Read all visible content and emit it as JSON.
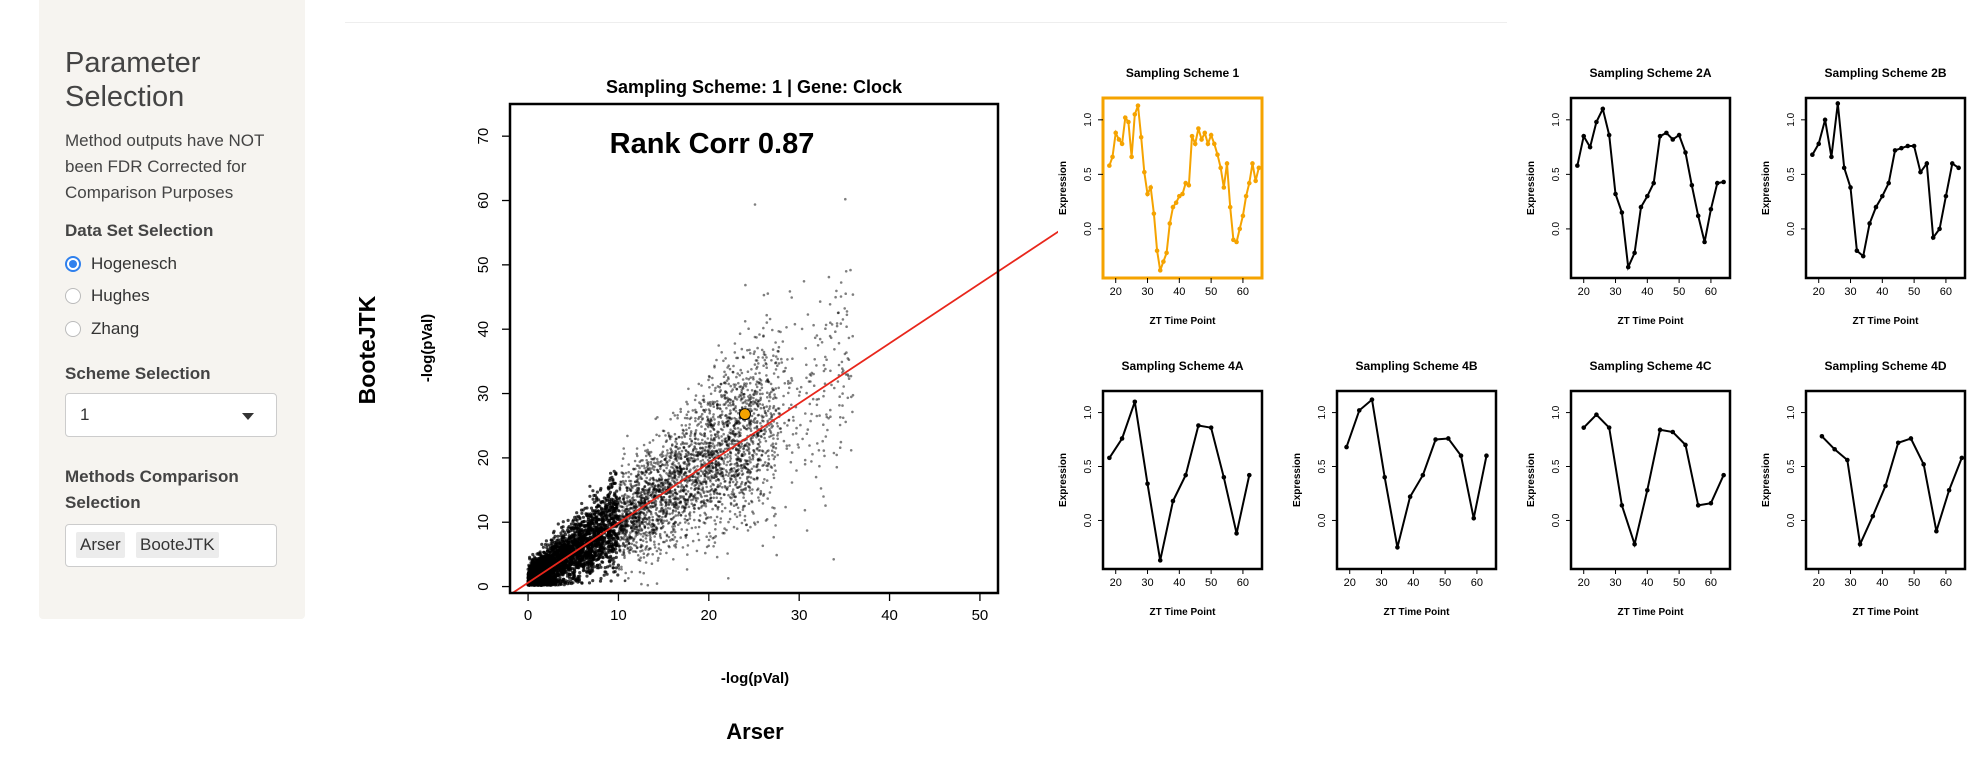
{
  "sidebar": {
    "title": "Parameter Selection",
    "note": "Method outputs have NOT been FDR Corrected for Comparison Purposes",
    "data_set_label": "Data Set Selection",
    "data_sets": [
      "Hogenesch",
      "Hughes",
      "Zhang"
    ],
    "data_set_selected": "Hogenesch",
    "scheme_label": "Scheme Selection",
    "scheme_value": "1",
    "methods_label": "Methods Comparison Selection",
    "methods": [
      "Arser",
      "BooteJTK"
    ]
  },
  "colors": {
    "highlight": "#f5a300",
    "fit_line": "#e8261b",
    "radio_selected": "#2f80ed",
    "points": "#000000"
  },
  "chart_data": [
    {
      "type": "scatter",
      "title": "Sampling Scheme: 1 | Gene: Clock",
      "annotation": "Rank Corr 0.87",
      "xlabel": "-log(pVal)",
      "ylabel": "-log(pVal)",
      "outer_xlabel": "Arser",
      "outer_ylabel": "BooteJTK",
      "xlim": [
        -2,
        52
      ],
      "ylim": [
        -1,
        75
      ],
      "xticks": [
        0,
        10,
        20,
        30,
        40,
        50
      ],
      "yticks": [
        0,
        10,
        20,
        30,
        40,
        50,
        60,
        70
      ],
      "fit_line": {
        "slope": 0.93,
        "intercept": 0.6
      },
      "highlight_point": {
        "x": 24,
        "y": 26.8
      },
      "point_cloud": {
        "n_points": 6000,
        "x_range": [
          0,
          36
        ],
        "y_range": [
          0,
          45
        ]
      }
    },
    {
      "type": "line",
      "title": "Sampling Scheme 1",
      "highlighted": true,
      "xlabel": "ZT Time Point",
      "ylabel": "Expression",
      "xlim": [
        16,
        66
      ],
      "ylim": [
        -0.45,
        1.2
      ],
      "xticks": [
        20,
        30,
        40,
        50,
        60
      ],
      "yticks": [
        0,
        0.5,
        1
      ],
      "x": [
        18,
        19,
        20,
        21,
        22,
        23,
        24,
        25,
        26,
        27,
        28,
        29,
        30,
        31,
        32,
        33,
        34,
        35,
        36,
        37,
        38,
        39,
        40,
        41,
        42,
        43,
        44,
        45,
        46,
        47,
        48,
        49,
        50,
        51,
        52,
        53,
        54,
        55,
        56,
        57,
        58,
        59,
        60,
        61,
        62,
        63,
        64,
        65
      ],
      "y": [
        0.58,
        0.66,
        0.88,
        0.82,
        0.78,
        1.02,
        0.98,
        0.66,
        1.05,
        1.13,
        0.84,
        0.52,
        0.32,
        0.38,
        0.14,
        -0.2,
        -0.38,
        -0.3,
        -0.22,
        0.05,
        0.2,
        0.24,
        0.3,
        0.32,
        0.42,
        0.4,
        0.85,
        0.78,
        0.92,
        0.82,
        0.88,
        0.78,
        0.86,
        0.78,
        0.68,
        0.56,
        0.38,
        0.6,
        0.2,
        -0.1,
        -0.12,
        0.0,
        0.12,
        0.3,
        0.42,
        0.6,
        0.44,
        0.56
      ]
    },
    {
      "type": "line",
      "title": "Sampling Scheme 2A",
      "xlabel": "ZT Time Point",
      "ylabel": "Expression",
      "xlim": [
        16,
        66
      ],
      "ylim": [
        -0.45,
        1.2
      ],
      "xticks": [
        20,
        30,
        40,
        50,
        60
      ],
      "yticks": [
        0,
        0.5,
        1
      ],
      "x": [
        18,
        20,
        22,
        24,
        26,
        28,
        30,
        32,
        34,
        36,
        38,
        40,
        42,
        44,
        46,
        48,
        50,
        52,
        54,
        56,
        58,
        60,
        62,
        64
      ],
      "y": [
        0.58,
        0.85,
        0.75,
        0.98,
        1.1,
        0.86,
        0.32,
        0.15,
        -0.35,
        -0.22,
        0.2,
        0.3,
        0.42,
        0.85,
        0.88,
        0.82,
        0.86,
        0.7,
        0.4,
        0.12,
        -0.12,
        0.18,
        0.42,
        0.43
      ]
    },
    {
      "type": "line",
      "title": "Sampling Scheme 2B",
      "xlabel": "ZT Time Point",
      "ylabel": "Expression",
      "xlim": [
        16,
        66
      ],
      "ylim": [
        -0.45,
        1.2
      ],
      "xticks": [
        20,
        30,
        40,
        50,
        60
      ],
      "yticks": [
        0,
        0.5,
        1
      ],
      "x": [
        18,
        20,
        22,
        24,
        26,
        28,
        30,
        32,
        34,
        36,
        38,
        40,
        42,
        44,
        46,
        48,
        50,
        52,
        54,
        56,
        58,
        60,
        62,
        64
      ],
      "y": [
        0.68,
        0.78,
        1.0,
        0.66,
        1.15,
        0.56,
        0.38,
        -0.2,
        -0.25,
        0.05,
        0.2,
        0.3,
        0.42,
        0.72,
        0.74,
        0.76,
        0.76,
        0.52,
        0.6,
        -0.08,
        0.0,
        0.3,
        0.6,
        0.56
      ]
    },
    {
      "type": "line",
      "title": "Sampling Scheme 4A",
      "xlabel": "ZT Time Point",
      "ylabel": "Expression",
      "xlim": [
        16,
        66
      ],
      "ylim": [
        -0.45,
        1.2
      ],
      "xticks": [
        20,
        30,
        40,
        50,
        60
      ],
      "yticks": [
        0,
        0.5,
        1
      ],
      "x": [
        18,
        22,
        26,
        30,
        34,
        38,
        42,
        46,
        50,
        54,
        58,
        62
      ],
      "y": [
        0.58,
        0.76,
        1.1,
        0.34,
        -0.37,
        0.18,
        0.42,
        0.88,
        0.86,
        0.4,
        -0.12,
        0.42
      ]
    },
    {
      "type": "line",
      "title": "Sampling Scheme 4B",
      "xlabel": "ZT Time Point",
      "ylabel": "Expression",
      "xlim": [
        16,
        66
      ],
      "ylim": [
        -0.45,
        1.2
      ],
      "xticks": [
        20,
        30,
        40,
        50,
        60
      ],
      "yticks": [
        0,
        0.5,
        1
      ],
      "x": [
        19,
        23,
        27,
        31,
        35,
        39,
        43,
        47,
        51,
        55,
        59,
        63
      ],
      "y": [
        0.68,
        1.02,
        1.12,
        0.4,
        -0.25,
        0.22,
        0.42,
        0.75,
        0.76,
        0.6,
        0.02,
        0.6
      ]
    },
    {
      "type": "line",
      "title": "Sampling Scheme 4C",
      "xlabel": "ZT Time Point",
      "ylabel": "Expression",
      "xlim": [
        16,
        66
      ],
      "ylim": [
        -0.45,
        1.2
      ],
      "xticks": [
        20,
        30,
        40,
        50,
        60
      ],
      "yticks": [
        0,
        0.5,
        1
      ],
      "x": [
        20,
        24,
        28,
        32,
        36,
        40,
        44,
        48,
        52,
        56,
        60,
        64
      ],
      "y": [
        0.86,
        0.98,
        0.86,
        0.14,
        -0.22,
        0.28,
        0.84,
        0.82,
        0.7,
        0.14,
        0.16,
        0.42
      ]
    },
    {
      "type": "line",
      "title": "Sampling Scheme 4D",
      "xlabel": "ZT Time Point",
      "ylabel": "Expression",
      "xlim": [
        16,
        66
      ],
      "ylim": [
        -0.45,
        1.2
      ],
      "xticks": [
        20,
        30,
        40,
        50,
        60
      ],
      "yticks": [
        0,
        0.5,
        1
      ],
      "x": [
        21,
        25,
        29,
        33,
        37,
        41,
        45,
        49,
        53,
        57,
        61,
        65
      ],
      "y": [
        0.78,
        0.66,
        0.56,
        -0.22,
        0.04,
        0.32,
        0.72,
        0.76,
        0.52,
        -0.1,
        0.28,
        0.58
      ]
    }
  ]
}
